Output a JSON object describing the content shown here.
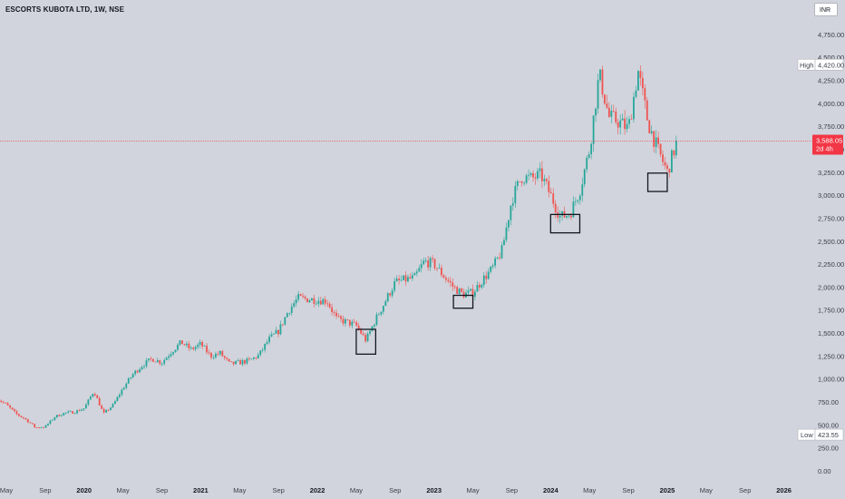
{
  "header": {
    "title": "ESCORTS KUBOTA LTD, 1W, NSE",
    "currency": "INR"
  },
  "price_scale": {
    "high_label": "High",
    "high_value": "4,420.00",
    "low_label": "Low",
    "low_value": "423.55",
    "last_price": "3,588.05",
    "countdown": "2d 4h"
  },
  "colors": {
    "background": "#d1d4dc",
    "up": "#26a69a",
    "down": "#ef5350",
    "price_line": "#f23645",
    "box": "#131722"
  },
  "chart_data": {
    "type": "candlestick",
    "title": "ESCORTS KUBOTA LTD, 1W, NSE",
    "currency": "INR",
    "ylim": [
      -50,
      5000
    ],
    "y_ticks": [
      "0.00",
      "250.00",
      "500.00",
      "750.00",
      "1,000.00",
      "1,250.00",
      "1,500.00",
      "1,750.00",
      "2,000.00",
      "2,250.00",
      "2,500.00",
      "2,750.00",
      "3,000.00",
      "3,250.00",
      "3,500.00",
      "3,750.00",
      "4,000.00",
      "4,250.00",
      "4,500.00",
      "4,750.00"
    ],
    "x_ticks": [
      {
        "label": "May",
        "date": "2019-05",
        "bold": false
      },
      {
        "label": "Sep",
        "date": "2019-09",
        "bold": false
      },
      {
        "label": "2020",
        "date": "2020-01",
        "bold": true
      },
      {
        "label": "May",
        "date": "2020-05",
        "bold": false
      },
      {
        "label": "Sep",
        "date": "2020-09",
        "bold": false
      },
      {
        "label": "2021",
        "date": "2021-01",
        "bold": true
      },
      {
        "label": "May",
        "date": "2021-05",
        "bold": false
      },
      {
        "label": "Sep",
        "date": "2021-09",
        "bold": false
      },
      {
        "label": "2022",
        "date": "2022-01",
        "bold": true
      },
      {
        "label": "May",
        "date": "2022-05",
        "bold": false
      },
      {
        "label": "Sep",
        "date": "2022-09",
        "bold": false
      },
      {
        "label": "2023",
        "date": "2023-01",
        "bold": true
      },
      {
        "label": "May",
        "date": "2023-05",
        "bold": false
      },
      {
        "label": "Sep",
        "date": "2023-09",
        "bold": false
      },
      {
        "label": "2024",
        "date": "2024-01",
        "bold": true
      },
      {
        "label": "May",
        "date": "2024-05",
        "bold": false
      },
      {
        "label": "Sep",
        "date": "2024-09",
        "bold": false
      },
      {
        "label": "2025",
        "date": "2025-01",
        "bold": true
      },
      {
        "label": "May",
        "date": "2025-05",
        "bold": false
      },
      {
        "label": "Sep",
        "date": "2025-09",
        "bold": false
      },
      {
        "label": "2026",
        "date": "2026-01",
        "bold": true
      }
    ],
    "price_path": [
      [
        "2019-04",
        790
      ],
      [
        "2019-05",
        720
      ],
      [
        "2019-06",
        620
      ],
      [
        "2019-07",
        560
      ],
      [
        "2019-08",
        470
      ],
      [
        "2019-09",
        480
      ],
      [
        "2019-10",
        590
      ],
      [
        "2019-11",
        630
      ],
      [
        "2019-12",
        640
      ],
      [
        "2020-01",
        680
      ],
      [
        "2020-02",
        870
      ],
      [
        "2020-03",
        620
      ],
      [
        "2020-04",
        720
      ],
      [
        "2020-05",
        900
      ],
      [
        "2020-06",
        1050
      ],
      [
        "2020-07",
        1150
      ],
      [
        "2020-08",
        1220
      ],
      [
        "2020-09",
        1180
      ],
      [
        "2020-10",
        1300
      ],
      [
        "2020-11",
        1400
      ],
      [
        "2020-12",
        1320
      ],
      [
        "2021-01",
        1380
      ],
      [
        "2021-02",
        1250
      ],
      [
        "2021-03",
        1280
      ],
      [
        "2021-04",
        1160
      ],
      [
        "2021-05",
        1180
      ],
      [
        "2021-06",
        1200
      ],
      [
        "2021-07",
        1260
      ],
      [
        "2021-08",
        1430
      ],
      [
        "2021-09",
        1520
      ],
      [
        "2021-10",
        1740
      ],
      [
        "2021-11",
        1880
      ],
      [
        "2021-12",
        1870
      ],
      [
        "2022-01",
        1860
      ],
      [
        "2022-02",
        1850
      ],
      [
        "2022-03",
        1650
      ],
      [
        "2022-04",
        1620
      ],
      [
        "2022-05",
        1580
      ],
      [
        "2022-06",
        1420
      ],
      [
        "2022-07",
        1650
      ],
      [
        "2022-08",
        1850
      ],
      [
        "2022-09",
        2050
      ],
      [
        "2022-10",
        2080
      ],
      [
        "2022-11",
        2100
      ],
      [
        "2022-12",
        2280
      ],
      [
        "2023-01",
        2250
      ],
      [
        "2023-02",
        2120
      ],
      [
        "2023-03",
        2000
      ],
      [
        "2023-04",
        1920
      ],
      [
        "2023-05",
        1940
      ],
      [
        "2023-06",
        2080
      ],
      [
        "2023-07",
        2200
      ],
      [
        "2023-08",
        2400
      ],
      [
        "2023-09",
        2950
      ],
      [
        "2023-10",
        3200
      ],
      [
        "2023-11",
        3180
      ],
      [
        "2023-12",
        3220
      ],
      [
        "2024-01",
        3000
      ],
      [
        "2024-02",
        2760
      ],
      [
        "2024-03",
        2800
      ],
      [
        "2024-04",
        3050
      ],
      [
        "2024-05",
        3500
      ],
      [
        "2024-06",
        4320
      ],
      [
        "2024-07",
        3850
      ],
      [
        "2024-08",
        3800
      ],
      [
        "2024-09",
        3720
      ],
      [
        "2024-10",
        4350
      ],
      [
        "2024-11",
        3800
      ],
      [
        "2024-12",
        3500
      ],
      [
        "2025-01",
        3250
      ],
      [
        "2025-02",
        3588
      ]
    ],
    "annotations": [
      {
        "type": "rectangle",
        "from": "2022-05",
        "to": "2022-07",
        "price_top": 1540,
        "price_bottom": 1270
      },
      {
        "type": "rectangle",
        "from": "2023-03",
        "to": "2023-05",
        "price_top": 1910,
        "price_bottom": 1770
      },
      {
        "type": "rectangle",
        "from": "2024-01",
        "to": "2024-04",
        "price_top": 2790,
        "price_bottom": 2590
      },
      {
        "type": "rectangle",
        "from": "2024-11",
        "to": "2025-01",
        "price_top": 3240,
        "price_bottom": 3040
      }
    ]
  }
}
